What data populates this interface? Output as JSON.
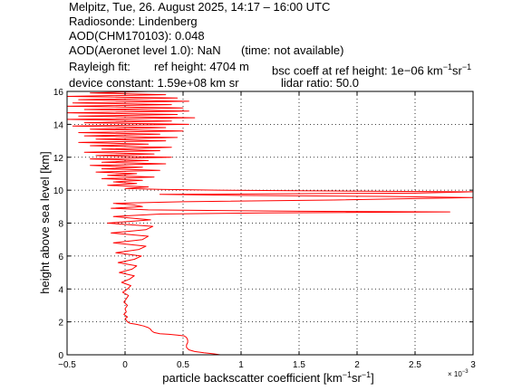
{
  "header": {
    "line1": "Melpitz, Tue, 26. August 2025, 14:17 – 16:00 UTC",
    "line2": "Radiosonde: Lindenberg",
    "line3": "AOD(CHM170103): 0.048",
    "line4_a": "AOD(Aeronet level 1.0): NaN",
    "line4_b": "(time: not available)",
    "line5_a": "Rayleigh fit:",
    "line5_b": "ref height: 4704 m",
    "line5_c": "bsc coeff at ref height: 1e−06 km",
    "line5_c_exp1": "−1",
    "line5_c_unit2": "sr",
    "line5_c_exp2": "−1",
    "line6_a": "device constant: 1.59e+08 km sr",
    "line6_b": "lidar ratio: 50.0"
  },
  "colors": {
    "series": "#ff0000",
    "axis": "#000000",
    "grid": "#000000"
  },
  "chart_data": {
    "type": "line",
    "xlabel": "particle backscatter coefficient [km",
    "xlabel_exp1": "−1",
    "xlabel_unit2": "sr",
    "xlabel_exp2": "−1",
    "xlabel_end": "]",
    "x_multiplier": "× 10",
    "x_multiplier_exp": "−3",
    "ylabel": "height above sea level [km]",
    "xlim": [
      -0.5,
      3
    ],
    "ylim": [
      0,
      16
    ],
    "xticks": [
      -0.5,
      0,
      0.5,
      1,
      1.5,
      2,
      2.5,
      3
    ],
    "xtick_labels": [
      "−0.5",
      "0",
      "0.5",
      "1",
      "1.5",
      "2",
      "2.5",
      "3"
    ],
    "yticks": [
      0,
      2,
      4,
      6,
      8,
      10,
      12,
      14,
      16
    ],
    "ytick_labels": [
      "0",
      "2",
      "4",
      "6",
      "8",
      "10",
      "12",
      "14",
      "16"
    ],
    "grid": true,
    "series": [
      {
        "points": [
          [
            0.82,
            0.0
          ],
          [
            0.76,
            0.06
          ],
          [
            0.68,
            0.12
          ],
          [
            0.6,
            0.2
          ],
          [
            0.55,
            0.3
          ],
          [
            0.53,
            0.45
          ],
          [
            0.53,
            0.6
          ],
          [
            0.54,
            0.75
          ],
          [
            0.54,
            0.9
          ],
          [
            0.53,
            1.05
          ],
          [
            0.51,
            1.15
          ],
          [
            0.45,
            1.2
          ],
          [
            0.38,
            1.24
          ],
          [
            0.3,
            1.28
          ],
          [
            0.25,
            1.35
          ],
          [
            0.23,
            1.45
          ],
          [
            0.22,
            1.55
          ],
          [
            0.2,
            1.65
          ],
          [
            0.16,
            1.75
          ],
          [
            0.1,
            1.85
          ],
          [
            0.04,
            1.92
          ],
          [
            0.02,
            2.0
          ],
          [
            0.01,
            2.1
          ],
          [
            0.0,
            2.2
          ],
          [
            0.02,
            2.3
          ],
          [
            -0.01,
            2.45
          ],
          [
            0.01,
            2.6
          ],
          [
            0.0,
            2.8
          ],
          [
            0.02,
            3.0
          ],
          [
            -0.01,
            3.2
          ],
          [
            0.01,
            3.4
          ],
          [
            0.03,
            3.6
          ],
          [
            -0.02,
            3.8
          ],
          [
            0.02,
            4.0
          ],
          [
            0.05,
            4.2
          ],
          [
            -0.03,
            4.4
          ],
          [
            0.04,
            4.6
          ],
          [
            0.08,
            4.8
          ],
          [
            -0.05,
            5.0
          ],
          [
            0.06,
            5.2
          ],
          [
            0.1,
            5.4
          ],
          [
            -0.06,
            5.6
          ],
          [
            0.08,
            5.8
          ],
          [
            0.14,
            6.0
          ],
          [
            -0.08,
            6.2
          ],
          [
            0.12,
            6.4
          ],
          [
            0.18,
            6.6
          ],
          [
            -0.1,
            6.8
          ],
          [
            0.15,
            7.0
          ],
          [
            0.2,
            7.2
          ],
          [
            -0.12,
            7.4
          ],
          [
            0.18,
            7.6
          ],
          [
            0.24,
            7.8
          ],
          [
            -0.15,
            8.0
          ],
          [
            0.22,
            8.2
          ],
          [
            -0.1,
            8.4
          ],
          [
            0.3,
            8.55
          ],
          [
            1.2,
            8.62
          ],
          [
            2.8,
            8.68
          ],
          [
            1.5,
            8.72
          ],
          [
            0.2,
            8.8
          ],
          [
            -0.12,
            8.9
          ],
          [
            0.15,
            9.0
          ],
          [
            0.08,
            9.1
          ],
          [
            -0.1,
            9.2
          ],
          [
            0.5,
            9.3
          ],
          [
            1.8,
            9.4
          ],
          [
            3.0,
            9.55
          ],
          [
            2.2,
            9.62
          ],
          [
            1.0,
            9.68
          ],
          [
            0.3,
            9.75
          ],
          [
            2.5,
            9.82
          ],
          [
            3.0,
            9.9
          ],
          [
            1.8,
            9.95
          ],
          [
            0.8,
            10.0
          ],
          [
            0.3,
            10.05
          ],
          [
            0.0,
            10.1
          ],
          [
            0.2,
            10.2
          ],
          [
            -0.15,
            10.3
          ],
          [
            0.1,
            10.4
          ],
          [
            -0.1,
            10.5
          ],
          [
            0.15,
            10.6
          ],
          [
            -0.2,
            10.7
          ],
          [
            0.25,
            10.8
          ],
          [
            -0.15,
            10.9
          ],
          [
            0.1,
            11.0
          ],
          [
            -0.25,
            11.1
          ],
          [
            0.3,
            11.2
          ],
          [
            -0.2,
            11.3
          ],
          [
            0.15,
            11.4
          ],
          [
            -0.3,
            11.5
          ],
          [
            0.35,
            11.6
          ],
          [
            -0.2,
            11.7
          ],
          [
            0.2,
            11.8
          ],
          [
            -0.3,
            11.9
          ],
          [
            0.4,
            12.0
          ],
          [
            -0.25,
            12.1
          ],
          [
            0.25,
            12.2
          ],
          [
            -0.35,
            12.3
          ],
          [
            0.3,
            12.4
          ],
          [
            -0.2,
            12.5
          ],
          [
            0.4,
            12.6
          ],
          [
            -0.3,
            12.7
          ],
          [
            0.2,
            12.8
          ],
          [
            -0.4,
            12.9
          ],
          [
            0.35,
            13.0
          ],
          [
            -0.25,
            13.1
          ],
          [
            0.45,
            13.2
          ],
          [
            -0.35,
            13.3
          ],
          [
            0.3,
            13.4
          ],
          [
            -0.4,
            13.5
          ],
          [
            0.5,
            13.6
          ],
          [
            -0.3,
            13.7
          ],
          [
            0.35,
            13.8
          ],
          [
            -0.45,
            13.9
          ],
          [
            0.55,
            14.0
          ],
          [
            -0.35,
            14.1
          ],
          [
            0.4,
            14.2
          ],
          [
            -0.5,
            14.3
          ],
          [
            0.6,
            14.4
          ],
          [
            -0.4,
            14.5
          ],
          [
            0.45,
            14.6
          ],
          [
            -0.5,
            14.7
          ],
          [
            0.55,
            14.8
          ],
          [
            -0.35,
            14.9
          ],
          [
            0.5,
            15.0
          ],
          [
            -0.5,
            15.1
          ],
          [
            0.4,
            15.2
          ],
          [
            -0.45,
            15.3
          ],
          [
            0.55,
            15.4
          ],
          [
            -0.4,
            15.5
          ],
          [
            0.45,
            15.6
          ],
          [
            -0.5,
            15.7
          ],
          [
            0.35,
            15.8
          ],
          [
            -0.3,
            15.9
          ],
          [
            0.2,
            16.0
          ]
        ]
      }
    ]
  }
}
